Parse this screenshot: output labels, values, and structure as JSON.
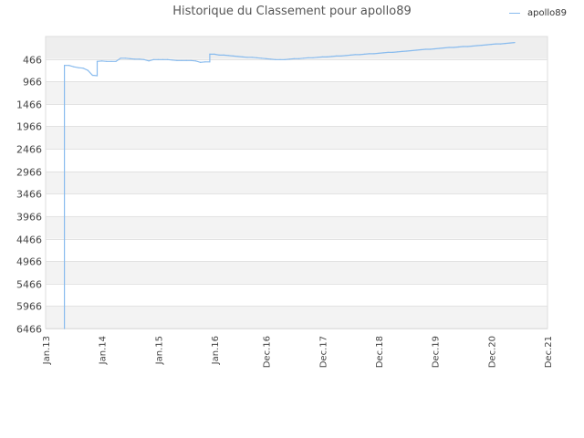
{
  "chart_data": {
    "type": "line",
    "title": "Historique du Classement pour apollo89",
    "xlabel": "",
    "ylabel": "",
    "y_inverted": true,
    "ylim": [
      -34,
      6466
    ],
    "y_ticks": [
      466,
      966,
      1466,
      1966,
      2466,
      2966,
      3466,
      3966,
      4466,
      4966,
      5466,
      5966,
      6466
    ],
    "x_ticks": [
      "Jan.13",
      "Jan.14",
      "Jan.15",
      "Jan.16",
      "Dec.16",
      "Dec.17",
      "Dec.18",
      "Dec.19",
      "Dec.20",
      "Dec.21"
    ],
    "x_tick_dates": [
      "2013-01",
      "2014-01",
      "2015-01",
      "2016-01",
      "2016-12",
      "2017-12",
      "2018-12",
      "2019-12",
      "2020-12",
      "2021-12"
    ],
    "grid": true,
    "legend_position": "top-right",
    "series": [
      {
        "name": "apollo89",
        "color": "#88bbee",
        "points": [
          [
            "2013-05",
            6466
          ],
          [
            "2013-05",
            610
          ],
          [
            "2013-06",
            610
          ],
          [
            "2013-07",
            640
          ],
          [
            "2013-08",
            660
          ],
          [
            "2013-09",
            670
          ],
          [
            "2013-10",
            720
          ],
          [
            "2013-11",
            830
          ],
          [
            "2013-12",
            840
          ],
          [
            "2013-12",
            520
          ],
          [
            "2014-01",
            510
          ],
          [
            "2014-02",
            520
          ],
          [
            "2014-03",
            520
          ],
          [
            "2014-04",
            520
          ],
          [
            "2014-05",
            450
          ],
          [
            "2014-06",
            450
          ],
          [
            "2014-07",
            460
          ],
          [
            "2014-08",
            470
          ],
          [
            "2014-09",
            470
          ],
          [
            "2014-10",
            480
          ],
          [
            "2014-11",
            510
          ],
          [
            "2014-12",
            480
          ],
          [
            "2015-01",
            480
          ],
          [
            "2015-02",
            480
          ],
          [
            "2015-03",
            480
          ],
          [
            "2015-04",
            490
          ],
          [
            "2015-05",
            500
          ],
          [
            "2015-06",
            500
          ],
          [
            "2015-07",
            500
          ],
          [
            "2015-08",
            500
          ],
          [
            "2015-09",
            510
          ],
          [
            "2015-10",
            540
          ],
          [
            "2015-11",
            530
          ],
          [
            "2015-12",
            530
          ],
          [
            "2015-12",
            360
          ],
          [
            "2016-01",
            360
          ],
          [
            "2016-02",
            380
          ],
          [
            "2016-03",
            380
          ],
          [
            "2016-04",
            390
          ],
          [
            "2016-05",
            400
          ],
          [
            "2016-06",
            410
          ],
          [
            "2016-07",
            420
          ],
          [
            "2016-08",
            430
          ],
          [
            "2016-09",
            430
          ],
          [
            "2016-10",
            440
          ],
          [
            "2016-11",
            450
          ],
          [
            "2016-12",
            460
          ],
          [
            "2017-01",
            470
          ],
          [
            "2017-02",
            480
          ],
          [
            "2017-03",
            480
          ],
          [
            "2017-04",
            480
          ],
          [
            "2017-05",
            470
          ],
          [
            "2017-06",
            460
          ],
          [
            "2017-07",
            460
          ],
          [
            "2017-08",
            450
          ],
          [
            "2017-09",
            440
          ],
          [
            "2017-10",
            440
          ],
          [
            "2017-11",
            430
          ],
          [
            "2017-12",
            420
          ],
          [
            "2018-01",
            420
          ],
          [
            "2018-02",
            410
          ],
          [
            "2018-03",
            400
          ],
          [
            "2018-04",
            400
          ],
          [
            "2018-05",
            390
          ],
          [
            "2018-06",
            380
          ],
          [
            "2018-07",
            370
          ],
          [
            "2018-08",
            370
          ],
          [
            "2018-09",
            360
          ],
          [
            "2018-10",
            350
          ],
          [
            "2018-11",
            350
          ],
          [
            "2018-12",
            340
          ],
          [
            "2019-01",
            330
          ],
          [
            "2019-02",
            320
          ],
          [
            "2019-03",
            320
          ],
          [
            "2019-04",
            310
          ],
          [
            "2019-05",
            300
          ],
          [
            "2019-06",
            290
          ],
          [
            "2019-07",
            280
          ],
          [
            "2019-08",
            270
          ],
          [
            "2019-09",
            260
          ],
          [
            "2019-10",
            250
          ],
          [
            "2019-11",
            250
          ],
          [
            "2019-12",
            240
          ],
          [
            "2020-01",
            230
          ],
          [
            "2020-02",
            220
          ],
          [
            "2020-03",
            210
          ],
          [
            "2020-04",
            210
          ],
          [
            "2020-05",
            200
          ],
          [
            "2020-06",
            190
          ],
          [
            "2020-07",
            190
          ],
          [
            "2020-08",
            180
          ],
          [
            "2020-09",
            170
          ],
          [
            "2020-10",
            160
          ],
          [
            "2020-11",
            150
          ],
          [
            "2020-12",
            140
          ],
          [
            "2021-01",
            130
          ],
          [
            "2021-02",
            130
          ],
          [
            "2021-03",
            120
          ],
          [
            "2021-04",
            110
          ],
          [
            "2021-05",
            100
          ]
        ]
      }
    ]
  }
}
